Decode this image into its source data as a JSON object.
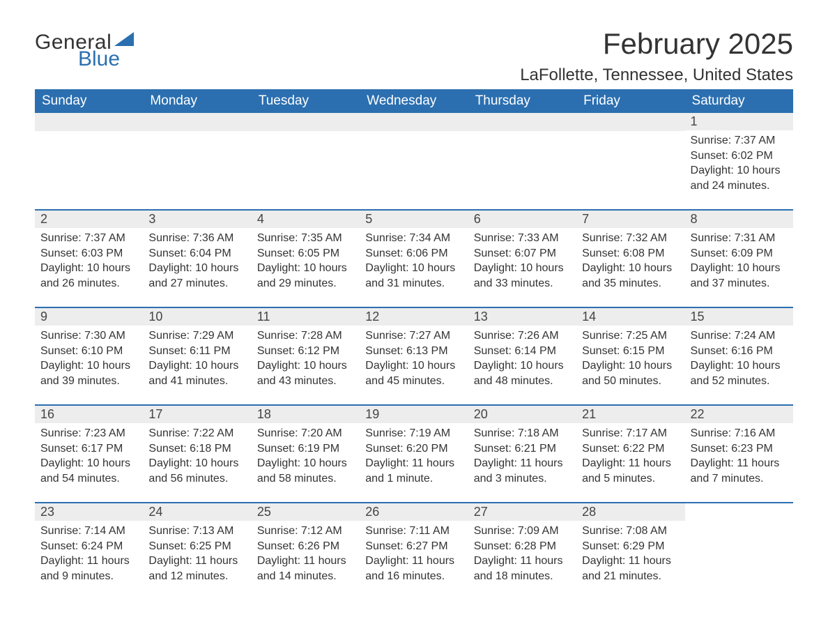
{
  "logo": {
    "word1": "General",
    "word2": "Blue",
    "flag_color": "#2b6fb0"
  },
  "title": {
    "month_year": "February 2025",
    "location": "LaFollette, Tennessee, United States"
  },
  "colors": {
    "header_bg": "#2b6fb0",
    "header_text": "#ffffff",
    "daybar_bg": "#ededed",
    "row_divider": "#2b6fb0",
    "body_text": "#333333"
  },
  "weekdays": [
    "Sunday",
    "Monday",
    "Tuesday",
    "Wednesday",
    "Thursday",
    "Friday",
    "Saturday"
  ],
  "weeks": [
    [
      null,
      null,
      null,
      null,
      null,
      null,
      {
        "day": "1",
        "sunrise": "Sunrise: 7:37 AM",
        "sunset": "Sunset: 6:02 PM",
        "daylight": "Daylight: 10 hours and 24 minutes."
      }
    ],
    [
      {
        "day": "2",
        "sunrise": "Sunrise: 7:37 AM",
        "sunset": "Sunset: 6:03 PM",
        "daylight": "Daylight: 10 hours and 26 minutes."
      },
      {
        "day": "3",
        "sunrise": "Sunrise: 7:36 AM",
        "sunset": "Sunset: 6:04 PM",
        "daylight": "Daylight: 10 hours and 27 minutes."
      },
      {
        "day": "4",
        "sunrise": "Sunrise: 7:35 AM",
        "sunset": "Sunset: 6:05 PM",
        "daylight": "Daylight: 10 hours and 29 minutes."
      },
      {
        "day": "5",
        "sunrise": "Sunrise: 7:34 AM",
        "sunset": "Sunset: 6:06 PM",
        "daylight": "Daylight: 10 hours and 31 minutes."
      },
      {
        "day": "6",
        "sunrise": "Sunrise: 7:33 AM",
        "sunset": "Sunset: 6:07 PM",
        "daylight": "Daylight: 10 hours and 33 minutes."
      },
      {
        "day": "7",
        "sunrise": "Sunrise: 7:32 AM",
        "sunset": "Sunset: 6:08 PM",
        "daylight": "Daylight: 10 hours and 35 minutes."
      },
      {
        "day": "8",
        "sunrise": "Sunrise: 7:31 AM",
        "sunset": "Sunset: 6:09 PM",
        "daylight": "Daylight: 10 hours and 37 minutes."
      }
    ],
    [
      {
        "day": "9",
        "sunrise": "Sunrise: 7:30 AM",
        "sunset": "Sunset: 6:10 PM",
        "daylight": "Daylight: 10 hours and 39 minutes."
      },
      {
        "day": "10",
        "sunrise": "Sunrise: 7:29 AM",
        "sunset": "Sunset: 6:11 PM",
        "daylight": "Daylight: 10 hours and 41 minutes."
      },
      {
        "day": "11",
        "sunrise": "Sunrise: 7:28 AM",
        "sunset": "Sunset: 6:12 PM",
        "daylight": "Daylight: 10 hours and 43 minutes."
      },
      {
        "day": "12",
        "sunrise": "Sunrise: 7:27 AM",
        "sunset": "Sunset: 6:13 PM",
        "daylight": "Daylight: 10 hours and 45 minutes."
      },
      {
        "day": "13",
        "sunrise": "Sunrise: 7:26 AM",
        "sunset": "Sunset: 6:14 PM",
        "daylight": "Daylight: 10 hours and 48 minutes."
      },
      {
        "day": "14",
        "sunrise": "Sunrise: 7:25 AM",
        "sunset": "Sunset: 6:15 PM",
        "daylight": "Daylight: 10 hours and 50 minutes."
      },
      {
        "day": "15",
        "sunrise": "Sunrise: 7:24 AM",
        "sunset": "Sunset: 6:16 PM",
        "daylight": "Daylight: 10 hours and 52 minutes."
      }
    ],
    [
      {
        "day": "16",
        "sunrise": "Sunrise: 7:23 AM",
        "sunset": "Sunset: 6:17 PM",
        "daylight": "Daylight: 10 hours and 54 minutes."
      },
      {
        "day": "17",
        "sunrise": "Sunrise: 7:22 AM",
        "sunset": "Sunset: 6:18 PM",
        "daylight": "Daylight: 10 hours and 56 minutes."
      },
      {
        "day": "18",
        "sunrise": "Sunrise: 7:20 AM",
        "sunset": "Sunset: 6:19 PM",
        "daylight": "Daylight: 10 hours and 58 minutes."
      },
      {
        "day": "19",
        "sunrise": "Sunrise: 7:19 AM",
        "sunset": "Sunset: 6:20 PM",
        "daylight": "Daylight: 11 hours and 1 minute."
      },
      {
        "day": "20",
        "sunrise": "Sunrise: 7:18 AM",
        "sunset": "Sunset: 6:21 PM",
        "daylight": "Daylight: 11 hours and 3 minutes."
      },
      {
        "day": "21",
        "sunrise": "Sunrise: 7:17 AM",
        "sunset": "Sunset: 6:22 PM",
        "daylight": "Daylight: 11 hours and 5 minutes."
      },
      {
        "day": "22",
        "sunrise": "Sunrise: 7:16 AM",
        "sunset": "Sunset: 6:23 PM",
        "daylight": "Daylight: 11 hours and 7 minutes."
      }
    ],
    [
      {
        "day": "23",
        "sunrise": "Sunrise: 7:14 AM",
        "sunset": "Sunset: 6:24 PM",
        "daylight": "Daylight: 11 hours and 9 minutes."
      },
      {
        "day": "24",
        "sunrise": "Sunrise: 7:13 AM",
        "sunset": "Sunset: 6:25 PM",
        "daylight": "Daylight: 11 hours and 12 minutes."
      },
      {
        "day": "25",
        "sunrise": "Sunrise: 7:12 AM",
        "sunset": "Sunset: 6:26 PM",
        "daylight": "Daylight: 11 hours and 14 minutes."
      },
      {
        "day": "26",
        "sunrise": "Sunrise: 7:11 AM",
        "sunset": "Sunset: 6:27 PM",
        "daylight": "Daylight: 11 hours and 16 minutes."
      },
      {
        "day": "27",
        "sunrise": "Sunrise: 7:09 AM",
        "sunset": "Sunset: 6:28 PM",
        "daylight": "Daylight: 11 hours and 18 minutes."
      },
      {
        "day": "28",
        "sunrise": "Sunrise: 7:08 AM",
        "sunset": "Sunset: 6:29 PM",
        "daylight": "Daylight: 11 hours and 21 minutes."
      },
      null
    ]
  ]
}
